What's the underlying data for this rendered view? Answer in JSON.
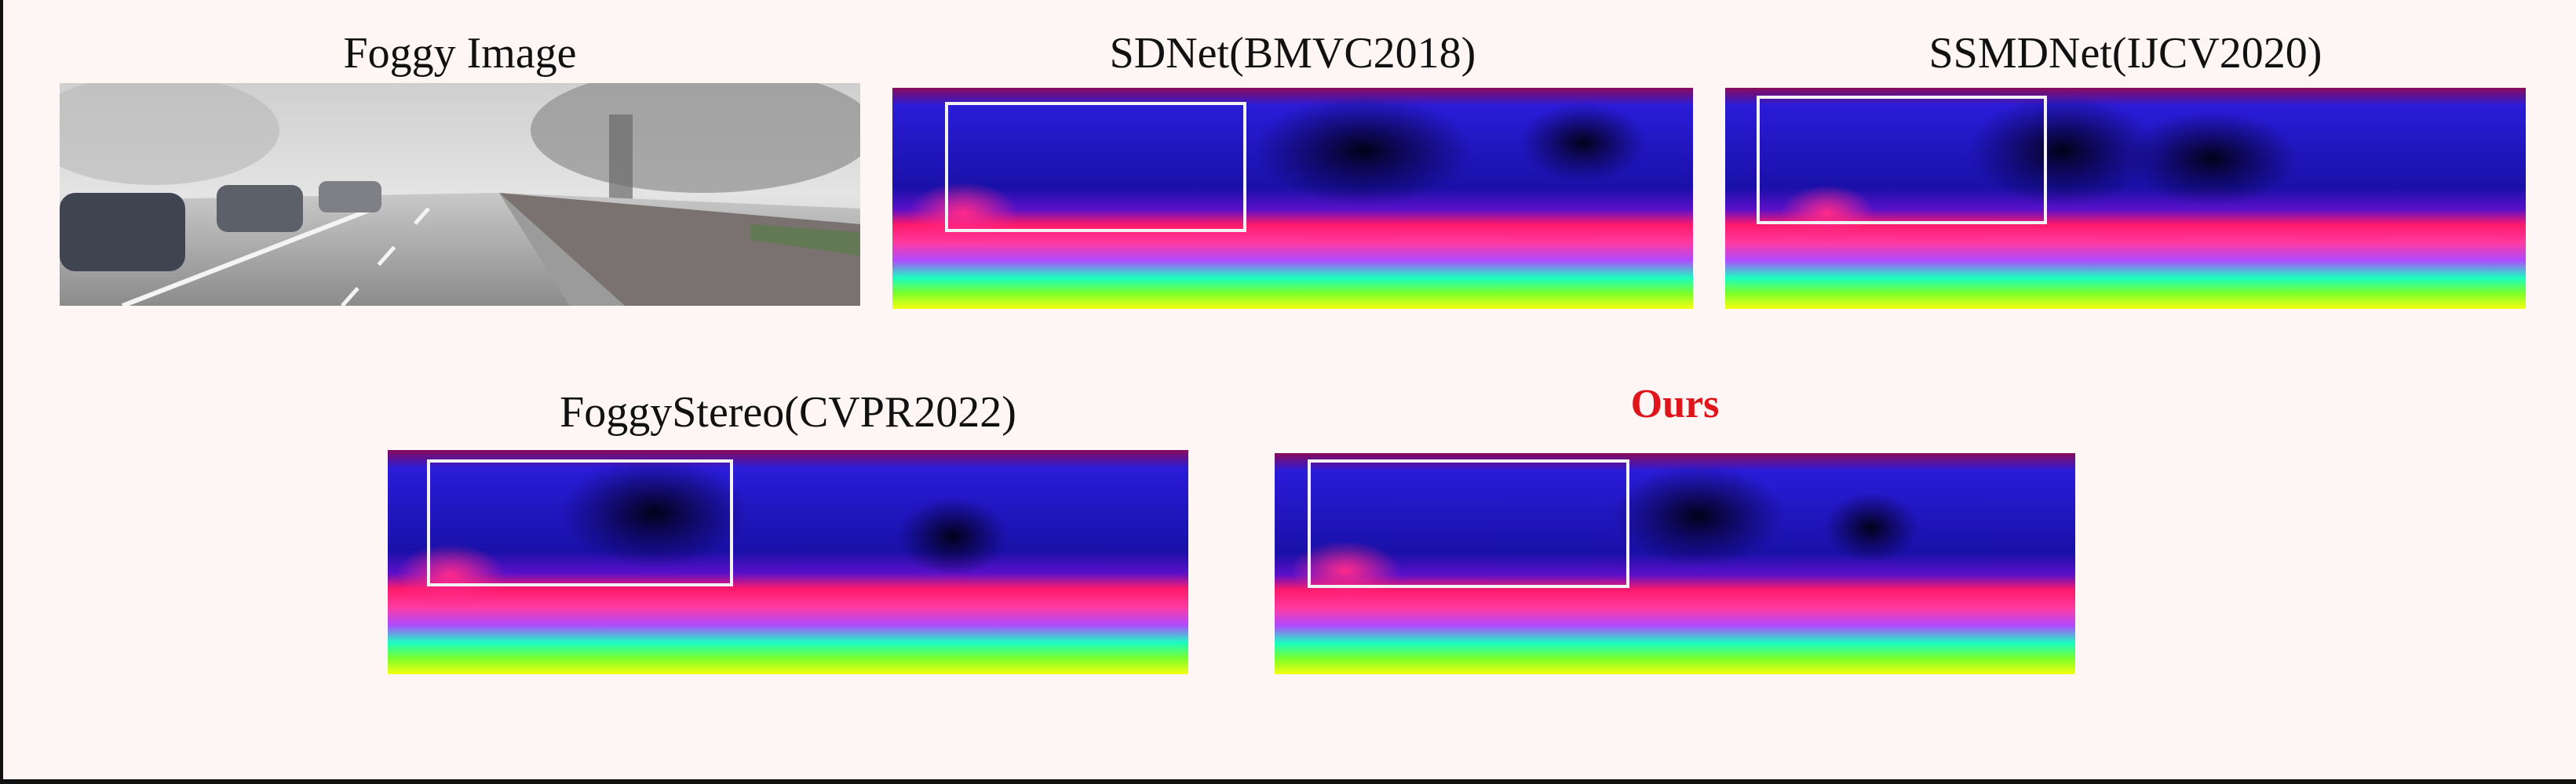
{
  "figure": {
    "panels": [
      {
        "id": "foggy",
        "caption": "Foggy Image",
        "kind": "photo",
        "highlight": false
      },
      {
        "id": "sdnet",
        "caption": "SDNet(BMVC2018)",
        "kind": "disparity",
        "highlight": false
      },
      {
        "id": "ssmdnet",
        "caption": "SSMDNet(IJCV2020)",
        "kind": "disparity",
        "highlight": false
      },
      {
        "id": "foggystereo",
        "caption": "FoggyStereo(CVPR2022)",
        "kind": "disparity",
        "highlight": false
      },
      {
        "id": "ours",
        "caption": "Ours",
        "kind": "disparity",
        "highlight": true
      }
    ]
  }
}
